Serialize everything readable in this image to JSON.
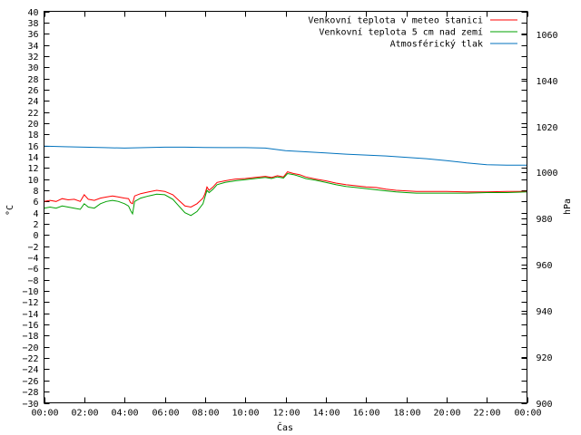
{
  "chart_data": {
    "type": "line",
    "xlabel": "Čas",
    "ylabel": "°C",
    "y2label": "hPa",
    "ylim": [
      -30,
      40
    ],
    "y2lim": [
      900,
      1070
    ],
    "xlim": [
      0,
      24
    ],
    "x_ticks": [
      "00:00",
      "02:00",
      "04:00",
      "06:00",
      "08:00",
      "10:00",
      "12:00",
      "14:00",
      "16:00",
      "18:00",
      "20:00",
      "22:00",
      "00:00"
    ],
    "y_ticks": [
      40,
      38,
      36,
      34,
      32,
      30,
      28,
      26,
      24,
      22,
      20,
      18,
      16,
      14,
      12,
      10,
      8,
      6,
      4,
      2,
      0,
      -2,
      -4,
      -6,
      -8,
      -10,
      -12,
      -14,
      -16,
      -18,
      -20,
      -22,
      -24,
      -26,
      -28,
      -30
    ],
    "y2_ticks": [
      1060,
      1040,
      1020,
      1000,
      980,
      960,
      940,
      920,
      900
    ],
    "legend_position": "top-right",
    "series": [
      {
        "name": "Venkovní teplota v meteo stanici",
        "color": "#ff0000",
        "axis": "left",
        "x": [
          0,
          0.3,
          0.6,
          0.9,
          1.2,
          1.5,
          1.8,
          2.0,
          2.2,
          2.5,
          2.8,
          3.1,
          3.4,
          3.7,
          4.0,
          4.2,
          4.3,
          4.4,
          4.5,
          4.8,
          5.2,
          5.6,
          6.0,
          6.4,
          6.7,
          7.0,
          7.3,
          7.6,
          7.9,
          8.0,
          8.1,
          8.2,
          8.4,
          8.6,
          9.0,
          9.5,
          10.0,
          10.5,
          11.0,
          11.3,
          11.6,
          11.9,
          12.1,
          12.4,
          12.7,
          13.0,
          13.5,
          14.0,
          14.5,
          15.0,
          15.5,
          16.0,
          16.5,
          17.0,
          17.5,
          18.0,
          18.5,
          19.0,
          20.0,
          21.0,
          22.0,
          23.0,
          24.0
        ],
        "y": [
          6.0,
          6.2,
          6.0,
          6.5,
          6.3,
          6.4,
          6.0,
          7.2,
          6.4,
          6.2,
          6.6,
          6.8,
          7.0,
          6.8,
          6.6,
          6.5,
          5.8,
          5.6,
          7.0,
          7.4,
          7.7,
          8.0,
          7.8,
          7.2,
          6.2,
          5.2,
          5.0,
          5.6,
          6.6,
          7.4,
          8.6,
          8.0,
          8.6,
          9.4,
          9.7,
          10.0,
          10.1,
          10.3,
          10.5,
          10.3,
          10.6,
          10.4,
          11.3,
          11.0,
          10.8,
          10.4,
          10.0,
          9.7,
          9.3,
          9.0,
          8.8,
          8.6,
          8.5,
          8.2,
          8.0,
          7.9,
          7.8,
          7.8,
          7.8,
          7.7,
          7.7,
          7.8,
          7.8
        ]
      },
      {
        "name": "Venkovní teplota 5 cm nad zemí",
        "color": "#00a000",
        "axis": "left",
        "x": [
          0,
          0.3,
          0.6,
          0.9,
          1.2,
          1.5,
          1.8,
          2.0,
          2.2,
          2.5,
          2.8,
          3.1,
          3.4,
          3.7,
          4.0,
          4.2,
          4.3,
          4.4,
          4.5,
          4.8,
          5.2,
          5.6,
          6.0,
          6.4,
          6.7,
          7.0,
          7.3,
          7.6,
          7.9,
          8.0,
          8.1,
          8.2,
          8.4,
          8.6,
          9.0,
          9.5,
          10.0,
          10.5,
          11.0,
          11.3,
          11.6,
          11.9,
          12.1,
          12.4,
          12.7,
          13.0,
          13.5,
          14.0,
          14.5,
          15.0,
          15.5,
          16.0,
          16.5,
          17.0,
          17.5,
          18.0,
          18.5,
          19.0,
          20.0,
          21.0,
          22.0,
          23.0,
          24.0
        ],
        "y": [
          4.8,
          5.0,
          4.8,
          5.2,
          5.0,
          4.8,
          4.6,
          5.6,
          5.0,
          4.8,
          5.6,
          6.0,
          6.2,
          6.0,
          5.6,
          5.2,
          4.4,
          3.8,
          6.0,
          6.6,
          7.0,
          7.3,
          7.2,
          6.4,
          5.2,
          4.0,
          3.5,
          4.2,
          5.6,
          6.8,
          8.0,
          7.6,
          8.2,
          9.0,
          9.4,
          9.7,
          9.9,
          10.1,
          10.3,
          10.1,
          10.4,
          10.2,
          11.0,
          10.8,
          10.5,
          10.1,
          9.8,
          9.4,
          9.0,
          8.7,
          8.5,
          8.3,
          8.1,
          7.9,
          7.7,
          7.6,
          7.5,
          7.5,
          7.5,
          7.5,
          7.6,
          7.6,
          7.7
        ]
      },
      {
        "name": "Atmosférický tlak",
        "color": "#0072bd",
        "axis": "right",
        "x": [
          0,
          1,
          2,
          3,
          4,
          5,
          6,
          7,
          8,
          9,
          10,
          11,
          12,
          13,
          14,
          15,
          16,
          17,
          18,
          19,
          20,
          21,
          22,
          23,
          24
        ],
        "y": [
          1011.5,
          1011.2,
          1011.0,
          1010.8,
          1010.6,
          1010.8,
          1011.0,
          1011.0,
          1010.9,
          1010.8,
          1010.8,
          1010.6,
          1009.5,
          1009.0,
          1008.5,
          1008.0,
          1007.6,
          1007.2,
          1006.6,
          1006.0,
          1005.2,
          1004.2,
          1003.4,
          1003.2,
          1003.2
        ]
      }
    ]
  }
}
